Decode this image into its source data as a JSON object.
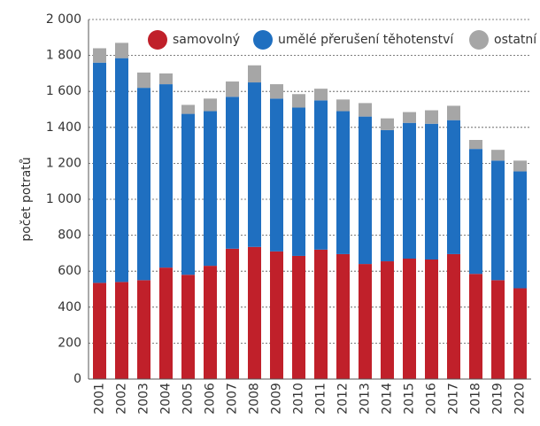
{
  "chart_data": {
    "type": "stacked_bar",
    "ylabel": "počet potratů",
    "categories": [
      "2001",
      "2002",
      "2003",
      "2004",
      "2005",
      "2006",
      "2007",
      "2008",
      "2009",
      "2010",
      "2011",
      "2012",
      "2013",
      "2014",
      "2015",
      "2016",
      "2017",
      "2018",
      "2019",
      "2020"
    ],
    "series": [
      {
        "name": "samovolný",
        "color": "#c0202a",
        "values": [
          535,
          540,
          550,
          620,
          580,
          630,
          725,
          735,
          710,
          685,
          720,
          695,
          640,
          655,
          670,
          665,
          695,
          585,
          550,
          505
        ]
      },
      {
        "name": "umělé přerušení těhotenství",
        "color": "#1f6fc0",
        "values": [
          1225,
          1245,
          1070,
          1020,
          895,
          860,
          845,
          915,
          850,
          825,
          830,
          795,
          820,
          730,
          755,
          755,
          745,
          695,
          665,
          650
        ]
      },
      {
        "name": "ostatní",
        "color": "#a6a6a6",
        "values": [
          80,
          85,
          85,
          60,
          50,
          70,
          85,
          95,
          80,
          75,
          65,
          65,
          75,
          65,
          60,
          75,
          80,
          50,
          60,
          60
        ]
      }
    ],
    "ylim": [
      0,
      2000
    ],
    "yticks": [
      0,
      {
        "value": 200,
        "label": "200"
      },
      {
        "value": 400,
        "label": "400"
      },
      {
        "value": 600,
        "label": "600"
      },
      {
        "value": 800,
        "label": "800"
      },
      {
        "value": 1000,
        "label": "1 000"
      },
      {
        "value": 1200,
        "label": "1 200"
      },
      {
        "value": 1400,
        "label": "1 400"
      },
      {
        "value": 1600,
        "label": "1 600"
      },
      {
        "value": 1800,
        "label": "1 800"
      },
      {
        "value": 2000,
        "label": "2 000"
      }
    ],
    "grid": true,
    "legend": "top"
  }
}
